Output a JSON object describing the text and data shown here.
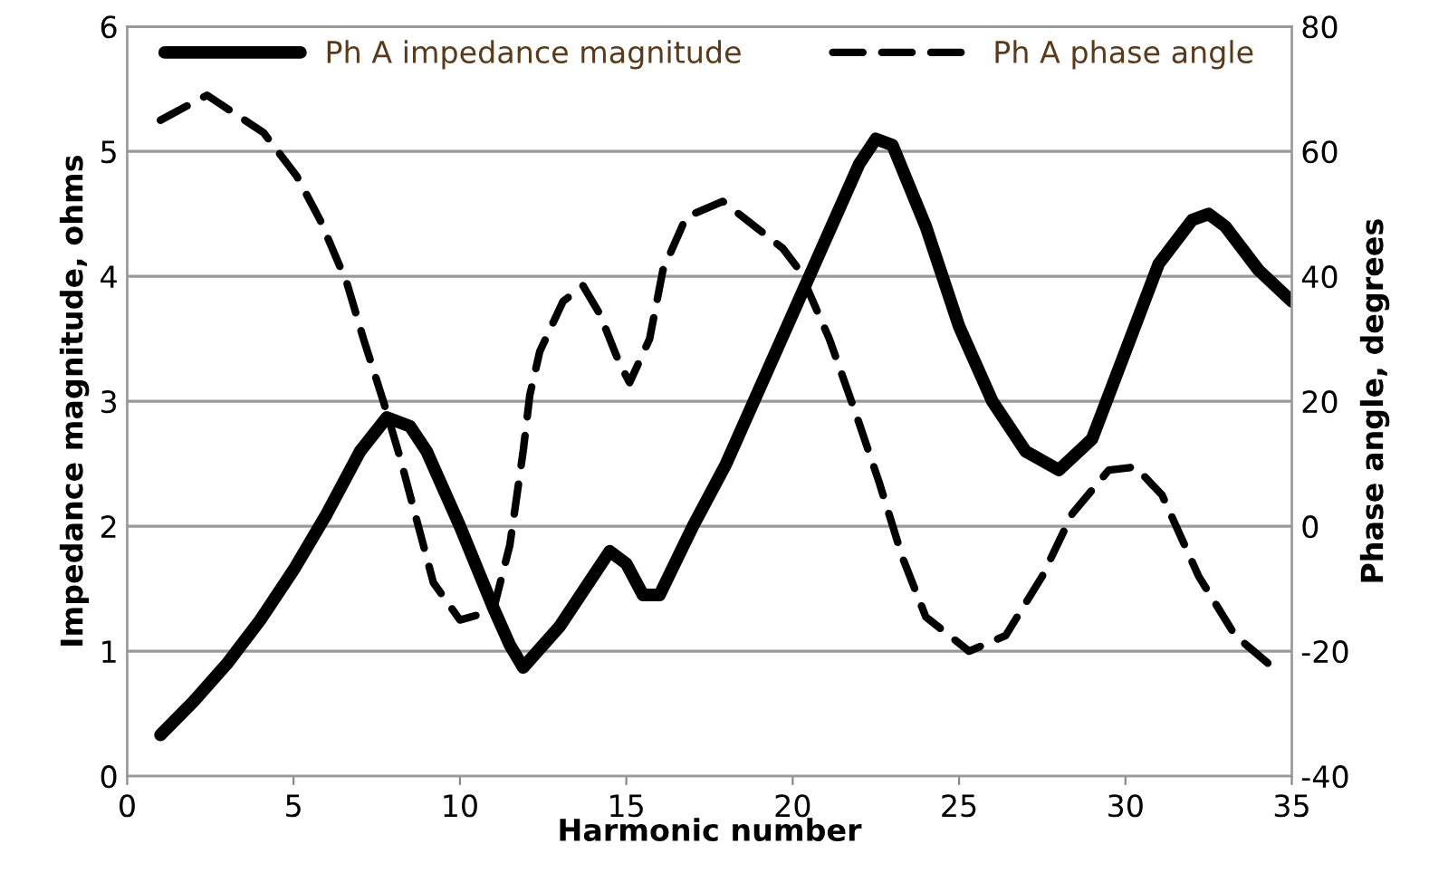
{
  "chart_data": {
    "type": "line",
    "xlabel": "Harmonic number",
    "ylabel": "Impedance magnitude, ohms",
    "y2label": "Phase angle, degrees",
    "xlim": [
      0,
      35
    ],
    "xticks": [
      0,
      5,
      10,
      15,
      20,
      25,
      30,
      35
    ],
    "ylim": [
      0,
      6
    ],
    "yticks": [
      0,
      1,
      2,
      3,
      4,
      5,
      6
    ],
    "y2lim": [
      -40,
      80
    ],
    "y2ticks": [
      -40,
      -20,
      0,
      20,
      40,
      60,
      80
    ],
    "grid": "y",
    "legend": "top",
    "marker": "none",
    "series": [
      {
        "name": "Ph A impedance magnitude",
        "color": "#000000",
        "line_style": "solid",
        "x": [
          1,
          2,
          3,
          4,
          5,
          6,
          7,
          7.8,
          8.5,
          9,
          10,
          11,
          11.5,
          11.9,
          13,
          14,
          14.5,
          15,
          15.5,
          16,
          17,
          18,
          19,
          20,
          21,
          22,
          22.5,
          23,
          24,
          25,
          26,
          27,
          28,
          29,
          30,
          31,
          32,
          32.5,
          33,
          34,
          35
        ],
        "values": [
          0.33,
          0.6,
          0.9,
          1.25,
          1.65,
          2.1,
          2.6,
          2.87,
          2.8,
          2.6,
          2.0,
          1.35,
          1.05,
          0.87,
          1.2,
          1.6,
          1.8,
          1.7,
          1.45,
          1.45,
          2.0,
          2.5,
          3.1,
          3.7,
          4.3,
          4.9,
          5.1,
          5.05,
          4.4,
          3.6,
          3.0,
          2.6,
          2.45,
          2.7,
          3.4,
          4.1,
          4.45,
          4.5,
          4.4,
          4.05,
          3.8
        ]
      },
      {
        "name": "Ph A phase angle",
        "color": "#000000",
        "line_style": "dashed",
        "axis": "y2",
        "x": [
          1,
          2.4,
          4.1,
          5.1,
          5.8,
          6.6,
          7.1,
          7.7,
          8.2,
          8.7,
          9.2,
          10.0,
          11.0,
          11.5,
          11.9,
          12.1,
          12.4,
          13.1,
          13.7,
          14.2,
          14.8,
          15.1,
          15.7,
          16.1,
          16.8,
          17.9,
          19.7,
          20.2,
          21.1,
          21.9,
          22.6,
          23.3,
          24.0,
          25.3,
          26.4,
          27.5,
          28.4,
          29.5,
          30.3,
          31.1,
          32.2,
          33.3,
          34.3
        ],
        "values": [
          65,
          69,
          63,
          56,
          49,
          39,
          30,
          20,
          11,
          1,
          -9,
          -15,
          -13.5,
          -3,
          12,
          21,
          28,
          36,
          38.5,
          34,
          26,
          23,
          30,
          41,
          49.5,
          52,
          44.5,
          41,
          30,
          18,
          7,
          -5,
          -14.5,
          -20,
          -17.5,
          -8,
          2,
          9,
          9.5,
          5,
          -8,
          -17.5,
          -22
        ]
      }
    ]
  }
}
